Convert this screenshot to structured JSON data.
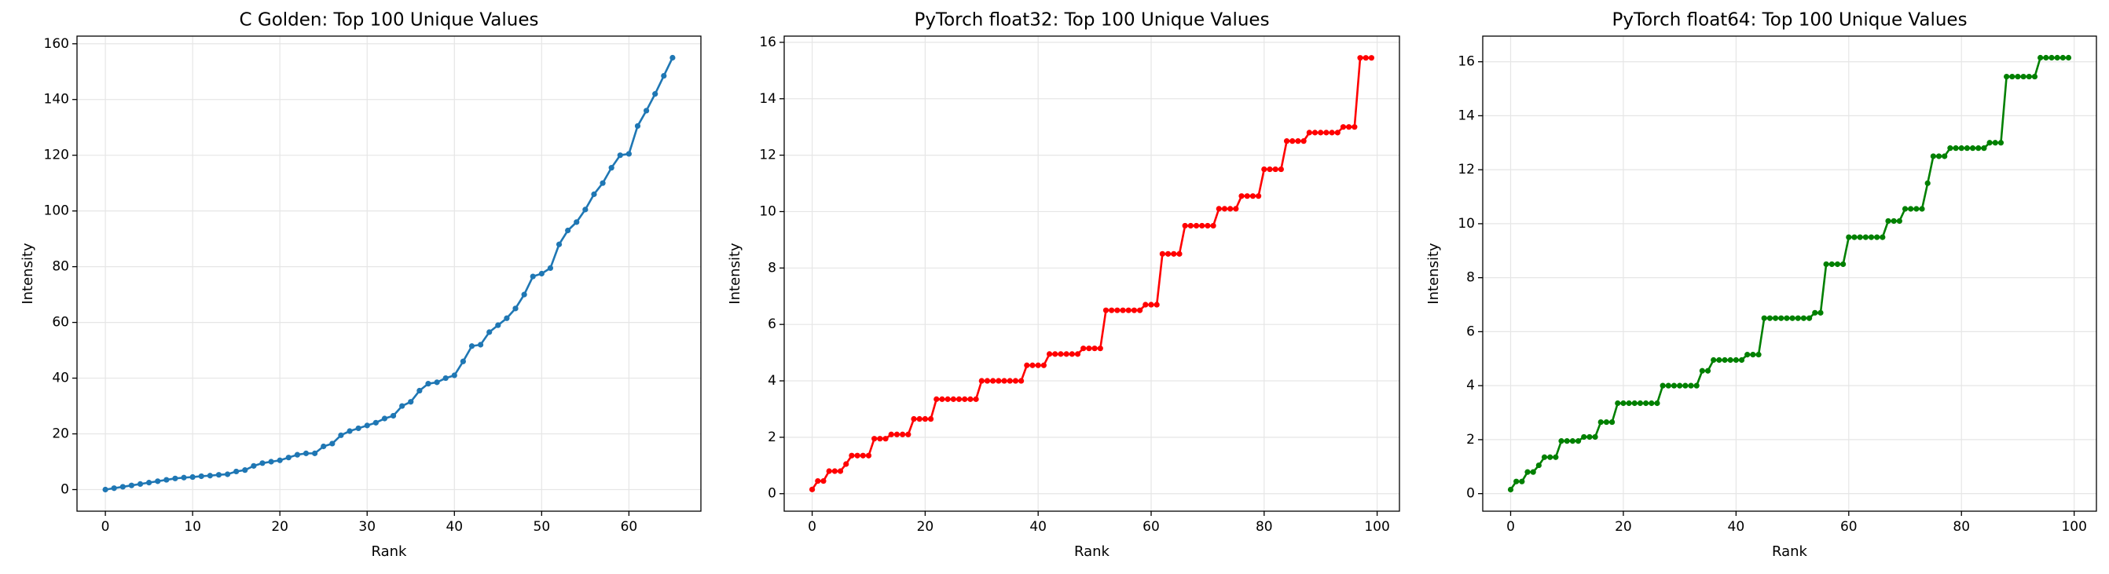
{
  "chart_data": [
    {
      "type": "line",
      "title": "C Golden: Top 100 Unique Values",
      "xlabel": "Rank",
      "ylabel": "Intensity",
      "color": "#1f77b4",
      "grid": true,
      "x": [
        0,
        1,
        2,
        3,
        4,
        5,
        6,
        7,
        8,
        9,
        10,
        11,
        12,
        13,
        14,
        15,
        16,
        17,
        18,
        19,
        20,
        21,
        22,
        23,
        24,
        25,
        26,
        27,
        28,
        29,
        30,
        31,
        32,
        33,
        34,
        35,
        36,
        37,
        38,
        39,
        40,
        41,
        42,
        43,
        44,
        45,
        46,
        47,
        48,
        49,
        50,
        51,
        52,
        53,
        54,
        55,
        56,
        57,
        58,
        59,
        60,
        61,
        62,
        63,
        64,
        65
      ],
      "values": [
        0,
        0.5,
        1,
        1.5,
        2,
        2.5,
        3,
        3.5,
        4,
        4.3,
        4.5,
        4.8,
        5,
        5.3,
        5.5,
        6.5,
        7,
        8.5,
        9.5,
        10,
        10.5,
        11.5,
        12.5,
        13,
        13,
        15.5,
        16.5,
        19.5,
        21,
        22,
        23,
        24,
        25.5,
        26.5,
        30,
        31.5,
        35.5,
        38,
        38.5,
        40,
        41,
        46,
        51.5,
        52,
        56.5,
        59,
        61.5,
        65,
        70,
        76.5,
        77.5,
        79.5,
        88,
        93,
        96,
        100.5,
        106,
        110,
        115.5,
        120,
        120.5,
        130.5,
        136,
        142,
        148.5,
        155
      ],
      "xlim": [
        -3.25,
        68.25
      ],
      "ylim": [
        -7.75,
        162.75
      ],
      "xticks": [
        0,
        10,
        20,
        30,
        40,
        50,
        60
      ],
      "yticks": [
        0,
        20,
        40,
        60,
        80,
        100,
        120,
        140,
        160
      ]
    },
    {
      "type": "line",
      "title": "PyTorch float32: Top 100 Unique Values",
      "xlabel": "Rank",
      "ylabel": "Intensity",
      "color": "#ff0000",
      "grid": true,
      "x": [
        0,
        1,
        2,
        3,
        4,
        5,
        6,
        7,
        8,
        9,
        10,
        11,
        12,
        13,
        14,
        15,
        16,
        17,
        18,
        19,
        20,
        21,
        22,
        23,
        24,
        25,
        26,
        27,
        28,
        29,
        30,
        31,
        32,
        33,
        34,
        35,
        36,
        37,
        38,
        39,
        40,
        41,
        42,
        43,
        44,
        45,
        46,
        47,
        48,
        49,
        50,
        51,
        52,
        53,
        54,
        55,
        56,
        57,
        58,
        59,
        60,
        61,
        62,
        63,
        64,
        65,
        66,
        67,
        68,
        69,
        70,
        71,
        72,
        73,
        74,
        75,
        76,
        77,
        78,
        79,
        80,
        81,
        82,
        83,
        84,
        85,
        86,
        87,
        88,
        89,
        90,
        91,
        92,
        93,
        94,
        95,
        96,
        97,
        98,
        99
      ],
      "values": [
        0.15,
        0.45,
        0.45,
        0.8,
        0.8,
        0.8,
        1.05,
        1.35,
        1.35,
        1.35,
        1.35,
        1.95,
        1.95,
        1.95,
        2.1,
        2.1,
        2.1,
        2.1,
        2.65,
        2.65,
        2.65,
        2.65,
        3.35,
        3.35,
        3.35,
        3.35,
        3.35,
        3.35,
        3.35,
        3.35,
        4.0,
        4.0,
        4.0,
        4.0,
        4.0,
        4.0,
        4.0,
        4.0,
        4.55,
        4.55,
        4.55,
        4.55,
        4.95,
        4.95,
        4.95,
        4.95,
        4.95,
        4.95,
        5.15,
        5.15,
        5.15,
        5.15,
        6.5,
        6.5,
        6.5,
        6.5,
        6.5,
        6.5,
        6.5,
        6.7,
        6.7,
        6.7,
        8.5,
        8.5,
        8.5,
        8.5,
        9.5,
        9.5,
        9.5,
        9.5,
        9.5,
        9.5,
        10.1,
        10.1,
        10.1,
        10.1,
        10.55,
        10.55,
        10.55,
        10.55,
        11.5,
        11.5,
        11.5,
        11.5,
        12.5,
        12.5,
        12.5,
        12.5,
        12.8,
        12.8,
        12.8,
        12.8,
        12.8,
        12.8,
        13.0,
        13.0,
        13.0,
        15.45,
        15.45,
        15.45
      ],
      "xlim": [
        -4.95,
        103.95
      ],
      "ylim": [
        -0.62,
        16.22
      ],
      "xticks": [
        0,
        20,
        40,
        60,
        80,
        100
      ],
      "yticks": [
        0,
        2,
        4,
        6,
        8,
        10,
        12,
        14,
        16
      ]
    },
    {
      "type": "line",
      "title": "PyTorch float64: Top 100 Unique Values",
      "xlabel": "Rank",
      "ylabel": "Intensity",
      "color": "#008000",
      "grid": true,
      "x": [
        0,
        1,
        2,
        3,
        4,
        5,
        6,
        7,
        8,
        9,
        10,
        11,
        12,
        13,
        14,
        15,
        16,
        17,
        18,
        19,
        20,
        21,
        22,
        23,
        24,
        25,
        26,
        27,
        28,
        29,
        30,
        31,
        32,
        33,
        34,
        35,
        36,
        37,
        38,
        39,
        40,
        41,
        42,
        43,
        44,
        45,
        46,
        47,
        48,
        49,
        50,
        51,
        52,
        53,
        54,
        55,
        56,
        57,
        58,
        59,
        60,
        61,
        62,
        63,
        64,
        65,
        66,
        67,
        68,
        69,
        70,
        71,
        72,
        73,
        74,
        75,
        76,
        77,
        78,
        79,
        80,
        81,
        82,
        83,
        84,
        85,
        86,
        87,
        88,
        89,
        90,
        91,
        92,
        93,
        94,
        95,
        96,
        97,
        98,
        99
      ],
      "values": [
        0.15,
        0.45,
        0.45,
        0.8,
        0.8,
        1.05,
        1.35,
        1.35,
        1.35,
        1.95,
        1.95,
        1.95,
        1.95,
        2.1,
        2.1,
        2.1,
        2.65,
        2.65,
        2.65,
        3.35,
        3.35,
        3.35,
        3.35,
        3.35,
        3.35,
        3.35,
        3.35,
        4.0,
        4.0,
        4.0,
        4.0,
        4.0,
        4.0,
        4.0,
        4.55,
        4.55,
        4.95,
        4.95,
        4.95,
        4.95,
        4.95,
        4.95,
        5.15,
        5.15,
        5.15,
        6.5,
        6.5,
        6.5,
        6.5,
        6.5,
        6.5,
        6.5,
        6.5,
        6.5,
        6.7,
        6.7,
        8.5,
        8.5,
        8.5,
        8.5,
        9.5,
        9.5,
        9.5,
        9.5,
        9.5,
        9.5,
        9.5,
        10.1,
        10.1,
        10.1,
        10.55,
        10.55,
        10.55,
        10.55,
        11.5,
        12.5,
        12.5,
        12.5,
        12.8,
        12.8,
        12.8,
        12.8,
        12.8,
        12.8,
        12.8,
        13.0,
        13.0,
        13.0,
        15.45,
        15.45,
        15.45,
        15.45,
        15.45,
        15.45,
        16.15,
        16.15,
        16.15,
        16.15,
        16.15,
        16.15
      ],
      "xlim": [
        -4.95,
        103.95
      ],
      "ylim": [
        -0.65,
        16.95
      ],
      "xticks": [
        0,
        20,
        40,
        60,
        80,
        100
      ],
      "yticks": [
        0,
        2,
        4,
        6,
        8,
        10,
        12,
        14,
        16
      ]
    }
  ]
}
